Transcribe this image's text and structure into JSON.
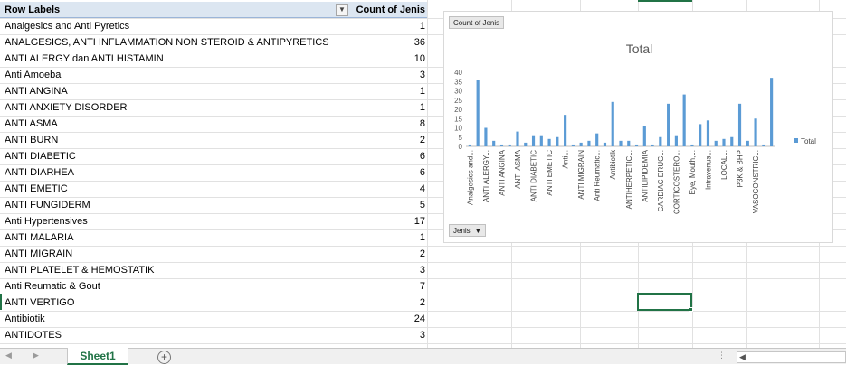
{
  "pivot": {
    "header_row_labels": "Row Labels",
    "header_count": "Count of Jenis",
    "rows": [
      {
        "label": "Analgesics and Anti Pyretics",
        "count": "1"
      },
      {
        "label": "ANALGESICS, ANTI INFLAMMATION NON STEROID  & ANTIPYRETICS",
        "count": "36"
      },
      {
        "label": "ANTI ALERGY dan ANTI HISTAMIN",
        "count": "10"
      },
      {
        "label": "Anti Amoeba",
        "count": "3"
      },
      {
        "label": "ANTI ANGINA",
        "count": "1"
      },
      {
        "label": "ANTI ANXIETY DISORDER",
        "count": "1"
      },
      {
        "label": "ANTI ASMA",
        "count": "8"
      },
      {
        "label": "ANTI BURN",
        "count": "2"
      },
      {
        "label": "ANTI DIABETIC",
        "count": "6"
      },
      {
        "label": "ANTI DIARHEA",
        "count": "6"
      },
      {
        "label": "ANTI EMETIC",
        "count": "4"
      },
      {
        "label": "ANTI FUNGIDERM",
        "count": "5"
      },
      {
        "label": "Anti Hypertensives",
        "count": "17"
      },
      {
        "label": "ANTI MALARIA",
        "count": "1"
      },
      {
        "label": "ANTI MIGRAIN",
        "count": "2"
      },
      {
        "label": "ANTI PLATELET & HEMOSTATIK",
        "count": "3"
      },
      {
        "label": "Anti Reumatic & Gout",
        "count": "7"
      },
      {
        "label": "ANTI VERTIGO",
        "count": "2"
      },
      {
        "label": "Antibiotik",
        "count": "24"
      },
      {
        "label": "ANTIDOTES",
        "count": "3"
      }
    ]
  },
  "chart": {
    "field_button": "Count of Jenis",
    "axis_button": "Jenis",
    "legend_label": "Total",
    "bar_color": "#5b9bd5"
  },
  "chart_data": {
    "type": "bar",
    "title": "Total",
    "ylim": [
      0,
      40
    ],
    "yticks": [
      "0",
      "5",
      "10",
      "15",
      "20",
      "25",
      "30",
      "35",
      "40"
    ],
    "series": [
      {
        "name": "Total",
        "values": [
          1,
          36,
          10,
          3,
          1,
          1,
          8,
          2,
          6,
          6,
          4,
          5,
          17,
          1,
          2,
          3,
          7,
          2,
          24,
          3,
          3,
          1,
          11,
          1,
          5,
          23,
          6,
          28,
          1,
          12,
          14,
          3,
          4,
          5,
          23,
          3,
          15,
          1,
          37
        ]
      }
    ],
    "category_labels": [
      {
        "index": 0,
        "text": "Analgesics and..."
      },
      {
        "index": 2,
        "text": "ANTI ALERGY..."
      },
      {
        "index": 4,
        "text": "ANTI ANGINA"
      },
      {
        "index": 6,
        "text": "ANTI ASMA"
      },
      {
        "index": 8,
        "text": "ANTI DIABETIC"
      },
      {
        "index": 10,
        "text": "ANTI EMETIC"
      },
      {
        "index": 12,
        "text": "Anti..."
      },
      {
        "index": 14,
        "text": "ANTI MIGRAIN"
      },
      {
        "index": 16,
        "text": "Anti Reumatic..."
      },
      {
        "index": 18,
        "text": "Antibiotik"
      },
      {
        "index": 20,
        "text": "ANTIHERPETIC..."
      },
      {
        "index": 22,
        "text": "ANTILIPIDEMIA"
      },
      {
        "index": 24,
        "text": "CARDIAC DRUG..."
      },
      {
        "index": 26,
        "text": "CORTICOSTERO..."
      },
      {
        "index": 28,
        "text": "Eye, Mouth,..."
      },
      {
        "index": 30,
        "text": "Intravenus..."
      },
      {
        "index": 32,
        "text": "LOCAL..."
      },
      {
        "index": 34,
        "text": "P3K & BHP"
      },
      {
        "index": 36,
        "text": "VASOCONSTRIC..."
      }
    ],
    "legend": "right",
    "grid": false
  },
  "workbook": {
    "sheet_tab": "Sheet1",
    "add_sheet": "+",
    "nav_prev": "◀",
    "nav_next": "▶",
    "hscroll_left": "◀",
    "split": "⋮"
  }
}
